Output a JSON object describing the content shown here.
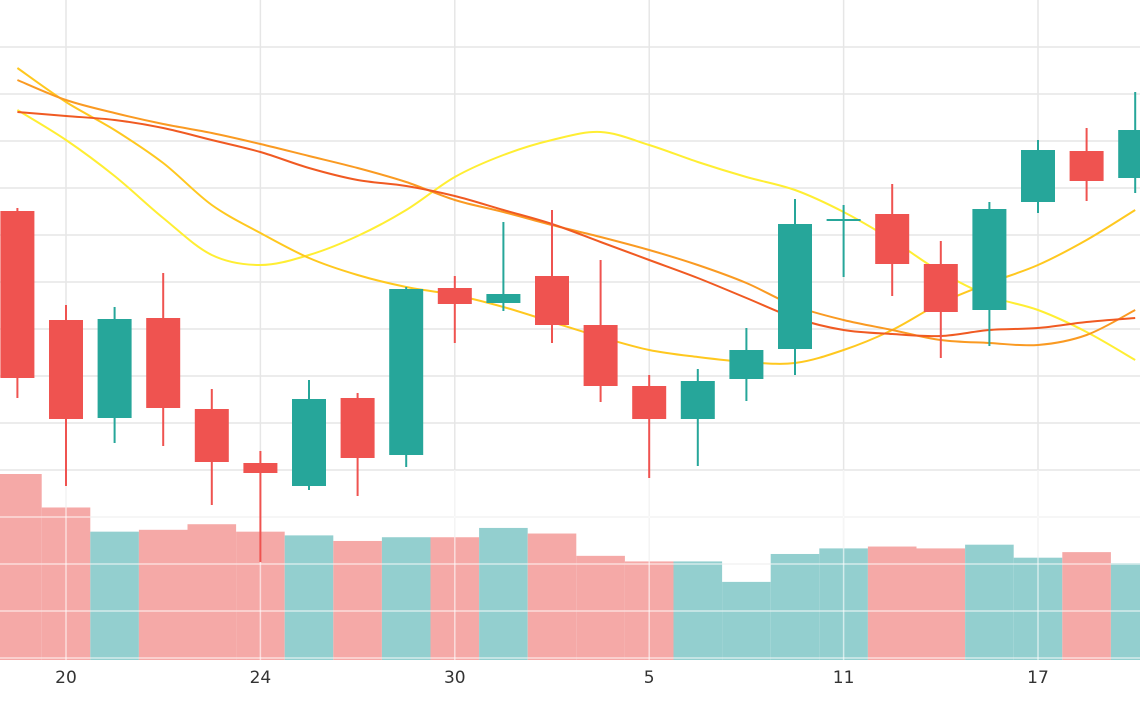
{
  "chart_data": {
    "type": "candlestick",
    "x": [
      0,
      1,
      2,
      3,
      4,
      5,
      6,
      7,
      8,
      9,
      10,
      11,
      12,
      13,
      14,
      15,
      16,
      17,
      18,
      19,
      20,
      21,
      22,
      23
    ],
    "x_tick_labels": [
      {
        "x": 1,
        "label": "20"
      },
      {
        "x": 5,
        "label": "24"
      },
      {
        "x": 9,
        "label": "30"
      },
      {
        "x": 13,
        "label": "5"
      },
      {
        "x": 17,
        "label": "11"
      },
      {
        "x": 21,
        "label": "17"
      }
    ],
    "price_ylim": [
      -380,
      10
    ],
    "volume_ylim": [
      0,
      100
    ],
    "candles": [
      {
        "open": -211,
        "high": -208,
        "low": -398,
        "close": -378
      },
      {
        "open": -320,
        "high": -305,
        "low": -486,
        "close": -419
      },
      {
        "open": -418,
        "high": -307,
        "low": -443,
        "close": -319
      },
      {
        "open": -318,
        "high": -273,
        "low": -446,
        "close": -408
      },
      {
        "open": -409,
        "high": -389,
        "low": -505,
        "close": -462
      },
      {
        "open": -463,
        "high": -451,
        "low": -562,
        "close": -473
      },
      {
        "open": -486,
        "high": -380,
        "low": -490,
        "close": -399
      },
      {
        "open": -398,
        "high": -393,
        "low": -496,
        "close": -458
      },
      {
        "open": -455,
        "high": -287,
        "low": -467,
        "close": -289
      },
      {
        "open": -288,
        "high": -276,
        "low": -343,
        "close": -304
      },
      {
        "open": -303,
        "high": -222,
        "low": -311,
        "close": -294
      },
      {
        "open": -276,
        "high": -210,
        "low": -343,
        "close": -325
      },
      {
        "open": -325,
        "high": -260,
        "low": -402,
        "close": -386
      },
      {
        "open": -386,
        "high": -375,
        "low": -478,
        "close": -419
      },
      {
        "open": -419,
        "high": -369,
        "low": -466,
        "close": -381
      },
      {
        "open": -379,
        "high": -328,
        "low": -401,
        "close": -350
      },
      {
        "open": -349,
        "high": -199,
        "low": -375,
        "close": -224
      },
      {
        "open": -221,
        "high": -205,
        "low": -277,
        "close": -219
      },
      {
        "open": -214,
        "high": -184,
        "low": -296,
        "close": -264
      },
      {
        "open": -264,
        "high": -241,
        "low": -358,
        "close": -312
      },
      {
        "open": -310,
        "high": -202,
        "low": -346,
        "close": -209
      },
      {
        "open": -202,
        "high": -140,
        "low": -213,
        "close": -150
      },
      {
        "open": -151,
        "high": -128,
        "low": -201,
        "close": -181
      },
      {
        "open": -178,
        "high": -92,
        "low": -193,
        "close": -130
      }
    ],
    "volume": [
      100,
      82,
      69,
      70,
      73,
      69,
      67,
      64,
      66,
      66,
      71,
      68,
      56,
      53,
      53,
      42,
      57,
      60,
      61,
      60,
      62,
      55,
      58,
      52
    ],
    "series": [
      {
        "values": [
          -110,
          -140,
          -176,
          -218,
          -255,
          -265,
          -255,
          -236,
          -210,
          -177,
          -155,
          -140,
          -132,
          -145,
          -162,
          -177,
          -190,
          -212,
          -240,
          -272,
          -296,
          -310,
          -332,
          -360
        ]
      },
      {
        "values": [
          -68,
          -102,
          -130,
          -163,
          -205,
          -233,
          -258,
          -275,
          -287,
          -295,
          -307,
          -322,
          -337,
          -350,
          -357,
          -362,
          -363,
          -350,
          -330,
          -303,
          -283,
          -265,
          -240,
          -210
        ]
      },
      {
        "values": [
          -80,
          -100,
          -113,
          -124,
          -133,
          -144,
          -156,
          -168,
          -182,
          -200,
          -212,
          -225,
          -237,
          -250,
          -265,
          -283,
          -306,
          -320,
          -330,
          -340,
          -343,
          -345,
          -335,
          -310
        ]
      },
      {
        "values": [
          -112,
          -116,
          -120,
          -128,
          -140,
          -152,
          -168,
          -180,
          -186,
          -196,
          -210,
          -224,
          -242,
          -260,
          -278,
          -298,
          -318,
          -330,
          -334,
          -336,
          -330,
          -328,
          -322,
          -318
        ]
      }
    ],
    "colors": {
      "up": "#26a69a",
      "down": "#ef5350",
      "volume_up": "#93cfcf",
      "volume_down": "#f5a9a7",
      "grid": "#e6e6e6",
      "series": [
        "#ffee33",
        "#ffc81f",
        "#fa9a22",
        "#f05a22"
      ]
    },
    "grid": true,
    "legend": "none"
  }
}
